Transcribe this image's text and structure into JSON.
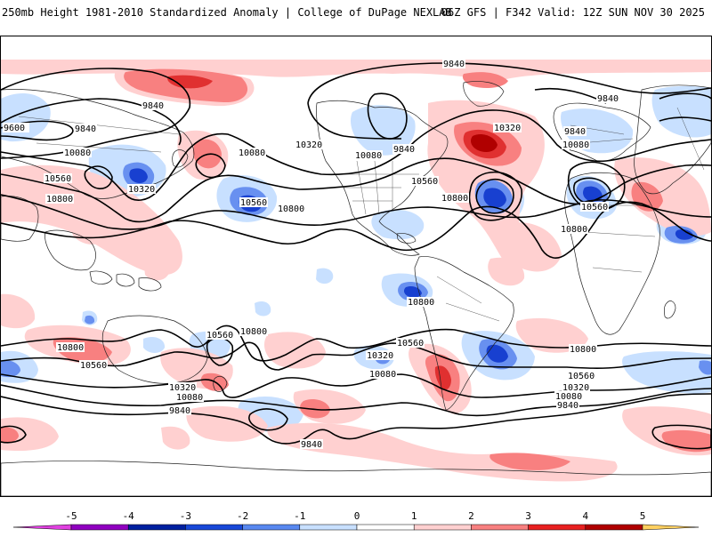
{
  "header": {
    "title": "250mb Height 1981-2010 Standardized Anomaly | College of DuPage NEXLAB",
    "run_info": "06Z GFS | F342 Valid: 12Z SUN NOV 30 2025"
  },
  "contour_labels": {
    "c9600": "9600",
    "c9840": "9840",
    "c10080": "10080",
    "c10320": "10320",
    "c10560": "10560",
    "c10800": "10800"
  },
  "colorbar": {
    "ticks": [
      "-5",
      "-4",
      "-3",
      "-2",
      "-1",
      "0",
      "1",
      "2",
      "3",
      "4",
      "5"
    ],
    "colors": [
      "#e040e0",
      "#9000c0",
      "#0020a0",
      "#1848d8",
      "#5888f0",
      "#c8e0ff",
      "#ffffff",
      "#ffd0d0",
      "#f88080",
      "#e82020",
      "#b00000",
      "#ffa000",
      "#ffd060"
    ]
  },
  "colors": {
    "neg1": "#c8e0ff",
    "neg2": "#6890f0",
    "neg3": "#1840d0",
    "pos1": "#ffd0d0",
    "pos2": "#f88080",
    "pos3": "#e03030",
    "pos4": "#b00000"
  }
}
